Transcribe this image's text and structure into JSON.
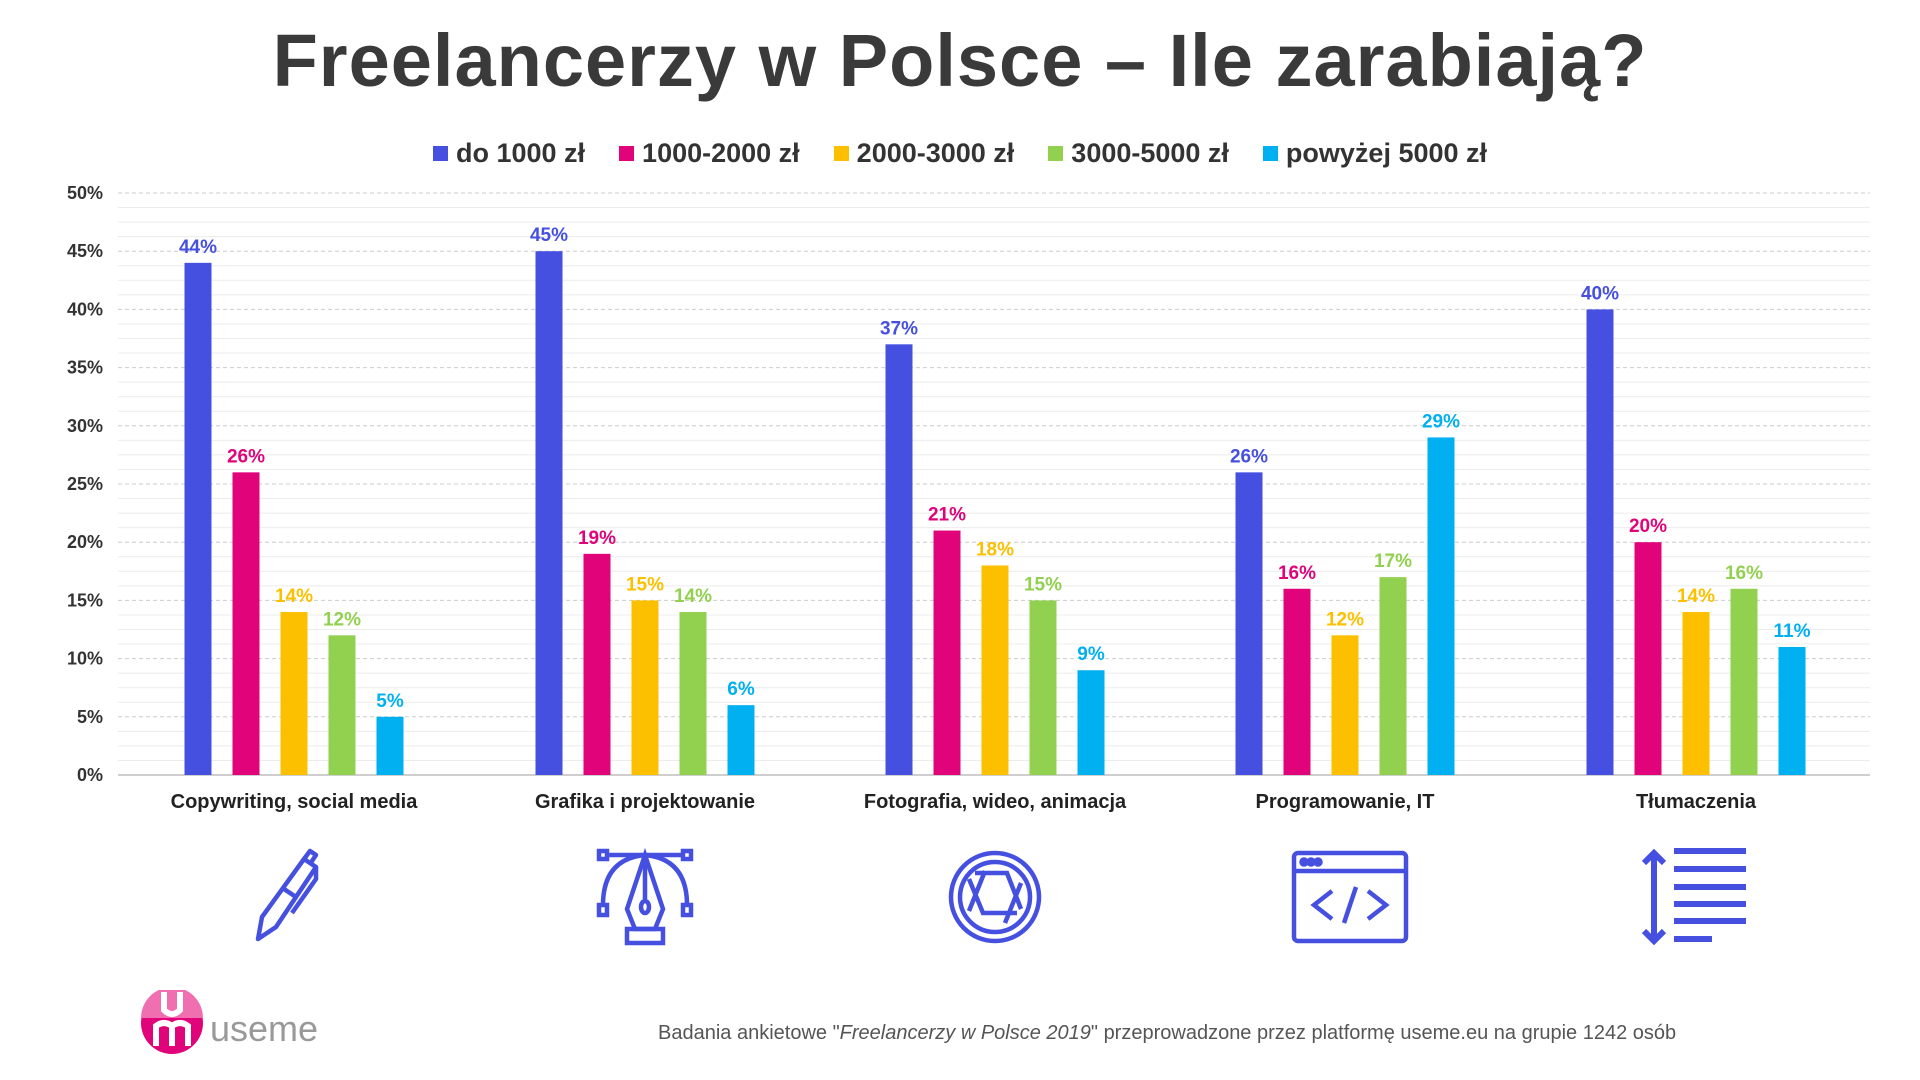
{
  "title": "Freelancerzy w Polsce – Ile zarabiają?",
  "footer": {
    "prefix": "Badania ankietowe \"",
    "italic": "Freelancerzy w Polsce 2019",
    "suffix": "\" przeprowadzone przez platformę useme.eu na grupie 1242 osób"
  },
  "logo": {
    "text": "useme",
    "color": "#e0037a"
  },
  "icons": [
    "pen-icon",
    "vector-pen-icon",
    "camera-aperture-icon",
    "code-window-icon",
    "line-spacing-icon"
  ],
  "chart_data": {
    "type": "bar",
    "title": "Freelancerzy w Polsce – Ile zarabiają?",
    "xlabel": "",
    "ylabel": "",
    "ylim": [
      0,
      50
    ],
    "yticks": [
      "0%",
      "5%",
      "10%",
      "15%",
      "20%",
      "25%",
      "30%",
      "35%",
      "40%",
      "45%",
      "50%"
    ],
    "grid": true,
    "legend_position": "top-center",
    "categories": [
      "Copywriting, social media",
      "Grafika i projektowanie",
      "Fotografia, wideo, animacja",
      "Programowanie, IT",
      "Tłumaczenia"
    ],
    "series": [
      {
        "name": "do 1000 zł",
        "color": "#4650e0",
        "values": [
          44,
          45,
          37,
          26,
          40
        ]
      },
      {
        "name": "1000-2000 zł",
        "color": "#e0037a",
        "values": [
          26,
          19,
          21,
          16,
          20
        ]
      },
      {
        "name": "2000-3000 zł",
        "color": "#fcc000",
        "values": [
          14,
          15,
          18,
          12,
          14
        ]
      },
      {
        "name": "3000-5000 zł",
        "color": "#92d050",
        "values": [
          12,
          14,
          15,
          17,
          16
        ]
      },
      {
        "name": "powyżej 5000 zł",
        "color": "#00b0f0",
        "values": [
          5,
          6,
          9,
          29,
          11
        ]
      }
    ]
  }
}
